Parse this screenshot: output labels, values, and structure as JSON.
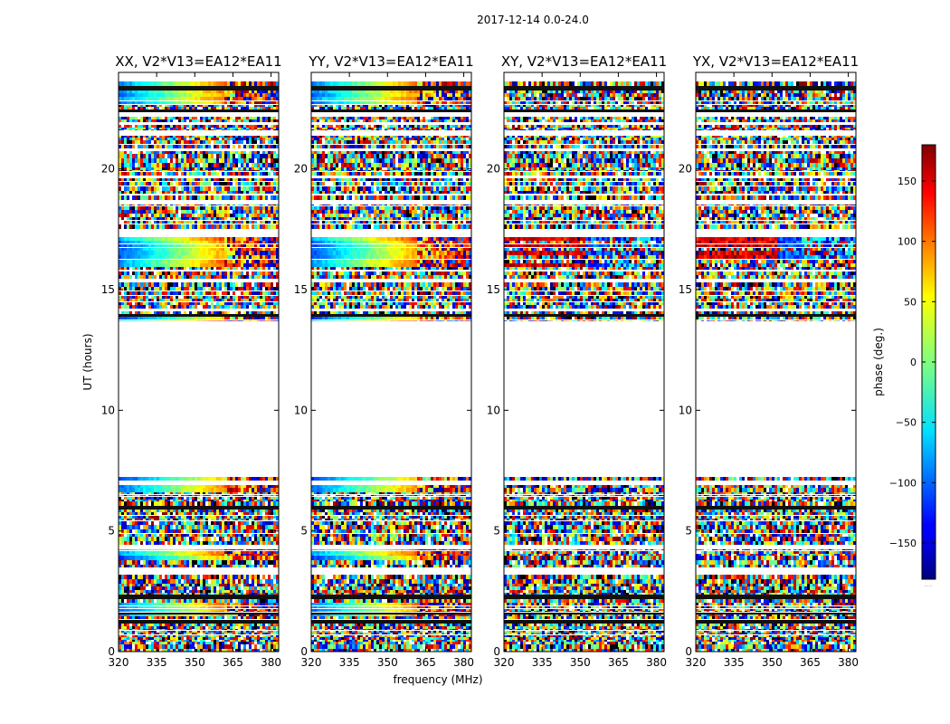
{
  "figure": {
    "suptitle": "2017-12-14 0.0-24.0",
    "xlabel": "frequency (MHz)",
    "ylabel": "UT (hours)"
  },
  "chart_data": {
    "type": "heatmap",
    "subtype": "dynamic spectrum (phase vs frequency and time)",
    "title": "2017-12-14 0.0-24.0",
    "xlabel": "frequency (MHz)",
    "ylabel": "UT (hours)",
    "xlim": [
      320,
      383
    ],
    "ylim": [
      0,
      24
    ],
    "xticks": [
      320,
      335,
      350,
      365,
      380
    ],
    "yticks": [
      0,
      5,
      10,
      15,
      20
    ],
    "value_label": "phase (deg.)",
    "vmin": -180,
    "vmax": 180,
    "colormap": "jet",
    "colorbar_ticks": [
      -150,
      -100,
      -50,
      0,
      50,
      100,
      150
    ],
    "colorbar_note": ".....",
    "observed_time_ranges_hours": [
      [
        0.0,
        7.5
      ],
      [
        13.7,
        24.0
      ]
    ],
    "data_gap_hours": [
      7.5,
      13.7
    ],
    "panels": [
      {
        "title": "XX, V2*V13=EA12*EA11",
        "pattern": "smooth-gradient",
        "coherent_bands_hours": [
          [
            1.5,
            2.0
          ],
          [
            3.8,
            4.4
          ],
          [
            6.6,
            7.5
          ],
          [
            13.7,
            14.0
          ],
          [
            16.0,
            17.1
          ],
          [
            22.7,
            23.9
          ]
        ]
      },
      {
        "title": "YY, V2*V13=EA12*EA11",
        "pattern": "smooth-gradient",
        "coherent_bands_hours": [
          [
            1.5,
            2.0
          ],
          [
            3.8,
            4.4
          ],
          [
            6.6,
            7.5
          ],
          [
            13.7,
            14.0
          ],
          [
            16.0,
            17.1
          ],
          [
            22.7,
            23.9
          ]
        ]
      },
      {
        "title": "XY, V2*V13=EA12*EA11",
        "pattern": "noise",
        "coherent_bands_hours": [
          [
            16.0,
            17.1
          ]
        ]
      },
      {
        "title": "YX, V2*V13=EA12*EA11",
        "pattern": "noise",
        "coherent_bands_hours": [
          [
            16.0,
            17.1
          ]
        ]
      }
    ]
  }
}
